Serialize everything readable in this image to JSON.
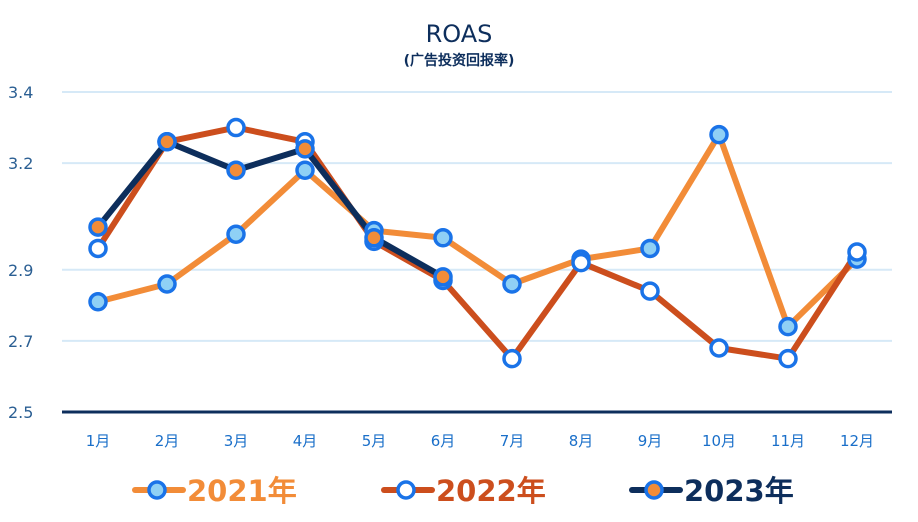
{
  "chart_data": {
    "type": "line",
    "title": "ROAS",
    "subtitle": "(广告投资回报率)",
    "categories": [
      "1月",
      "2月",
      "3月",
      "4月",
      "5月",
      "6月",
      "7月",
      "8月",
      "9月",
      "10月",
      "11月",
      "12月"
    ],
    "y_ticks": [
      "2.5",
      "2.7",
      "2.9",
      "3.2",
      "3.4"
    ],
    "ylim": [
      2.5,
      3.4
    ],
    "grid": true,
    "legend_position": "bottom",
    "series": [
      {
        "name": "2021年",
        "color": "#f28c38",
        "values": [
          2.81,
          2.86,
          3.0,
          3.18,
          3.01,
          2.99,
          2.86,
          2.93,
          2.96,
          3.28,
          2.74,
          2.93
        ]
      },
      {
        "name": "2022年",
        "color": "#cc4e1d",
        "values": [
          2.96,
          3.26,
          3.3,
          3.26,
          2.98,
          2.87,
          2.65,
          2.92,
          2.84,
          2.68,
          2.65,
          2.95
        ]
      },
      {
        "name": "2023年",
        "color": "#0d2e5c",
        "values": [
          3.02,
          3.26,
          3.18,
          3.24,
          2.99,
          2.88,
          null,
          null,
          null,
          null,
          null,
          null
        ]
      }
    ]
  }
}
